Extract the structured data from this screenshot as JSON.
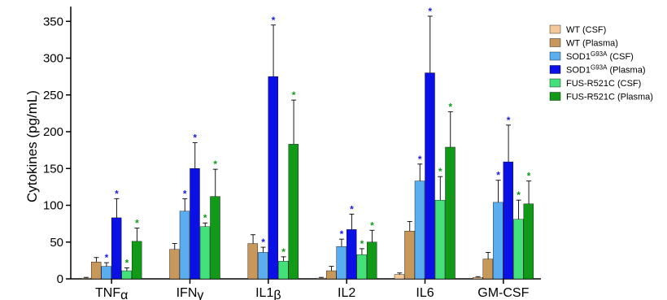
{
  "chart_data": {
    "type": "bar",
    "ylabel": "Cytokines (pg/mL)",
    "xlabel": "",
    "ylim": [
      0,
      370
    ],
    "yticks": [
      0,
      50,
      100,
      150,
      200,
      250,
      300,
      350
    ],
    "categories": [
      {
        "base": "TNF",
        "greek": "α"
      },
      {
        "base": "IFN",
        "greek": "γ"
      },
      {
        "base": "IL1",
        "greek": "β"
      },
      {
        "base": "IL2",
        "greek": ""
      },
      {
        "base": "IL6",
        "greek": ""
      },
      {
        "base": "GM-CSF",
        "greek": ""
      }
    ],
    "legend_position": "top-right",
    "series": [
      {
        "name_base": "WT",
        "name_sup": "",
        "name_tail": " (CSF)",
        "color": "#F5C89A",
        "values": [
          1,
          0,
          0,
          1,
          6,
          2
        ],
        "errors": [
          1,
          0,
          0,
          1,
          2,
          1
        ],
        "stars": [
          false,
          false,
          false,
          false,
          false,
          false
        ]
      },
      {
        "name_base": "WT",
        "name_sup": "",
        "name_tail": " (Plasma)",
        "color": "#C8975A",
        "values": [
          23,
          40,
          48,
          11,
          65,
          27
        ],
        "errors": [
          6,
          8,
          12,
          6,
          13,
          9
        ],
        "stars": [
          false,
          false,
          false,
          false,
          false,
          false
        ]
      },
      {
        "name_base": "SOD1",
        "name_sup": "G93A",
        "name_tail": " (CSF)",
        "color": "#5AAEF0",
        "values": [
          17,
          92,
          36,
          44,
          133,
          104
        ],
        "errors": [
          5,
          17,
          7,
          10,
          23,
          30
        ],
        "stars": [
          true,
          true,
          true,
          true,
          true,
          true
        ]
      },
      {
        "name_base": "SOD1",
        "name_sup": "G93A",
        "name_tail": " (Plasma)",
        "color": "#0A10E6",
        "values": [
          83,
          150,
          275,
          67,
          280,
          159
        ],
        "errors": [
          26,
          35,
          70,
          21,
          77,
          50
        ],
        "stars": [
          true,
          true,
          true,
          true,
          true,
          true
        ]
      },
      {
        "name_base": "FUS-R521C",
        "name_sup": "",
        "name_tail": " (CSF)",
        "color": "#44E07A",
        "values": [
          11,
          71,
          24,
          33,
          107,
          81
        ],
        "errors": [
          4,
          5,
          6,
          8,
          32,
          26
        ],
        "stars": [
          true,
          true,
          true,
          true,
          true,
          true
        ]
      },
      {
        "name_base": "FUS-R521C",
        "name_sup": "",
        "name_tail": " (Plasma)",
        "color": "#109A18",
        "values": [
          51,
          112,
          183,
          50,
          179,
          102
        ],
        "errors": [
          18,
          37,
          60,
          16,
          48,
          31
        ],
        "stars": [
          true,
          true,
          true,
          true,
          true,
          true
        ]
      }
    ],
    "star_symbol": "*",
    "star_colors": {
      "sod1": "#1A1AE6",
      "fus": "#109A18"
    }
  }
}
